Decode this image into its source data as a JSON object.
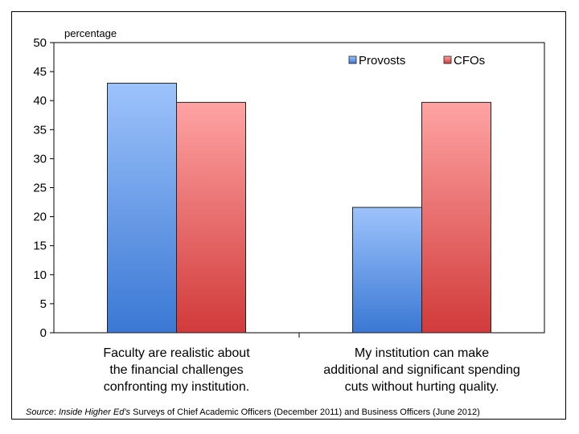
{
  "chart_data": {
    "type": "bar",
    "ylabel": "percentage",
    "ylim": [
      0,
      50
    ],
    "yticks": [
      0,
      5,
      10,
      15,
      20,
      25,
      30,
      35,
      40,
      45,
      50
    ],
    "categories": [
      [
        "Faculty are realistic about",
        "the financial challenges",
        "confronting my institution."
      ],
      [
        "My institution can make",
        "additional and significant spending",
        "cuts without hurting quality."
      ]
    ],
    "series": [
      {
        "name": "Provosts",
        "values": [
          43,
          21.6
        ]
      },
      {
        "name": "CFOs",
        "values": [
          39.7,
          39.7
        ]
      }
    ],
    "legend": "top-right",
    "grid": false
  },
  "source": {
    "label": "Source",
    "sep": ":  ",
    "italic_name": "Inside Higher Ed’s",
    "rest": " Surveys of Chief Academic Officers (December 2011) and Business Officers (June 2012)"
  },
  "colors": {
    "provosts_top": "#9dc3fb",
    "provosts_bottom": "#3a78d4",
    "cfos_top": "#ffa3a3",
    "cfos_bottom": "#d13a3a"
  }
}
